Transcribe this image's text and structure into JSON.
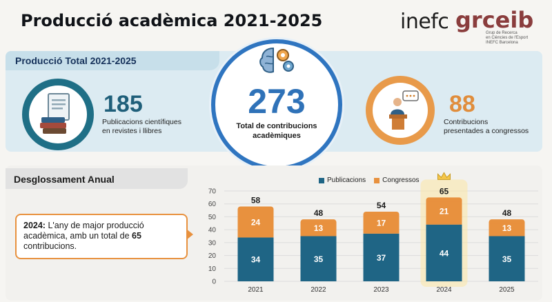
{
  "header": {
    "title": "Producció acadèmica 2021-2025",
    "logo_inefc": "inefc",
    "logo_grceib": "grceib",
    "logo_sub": [
      "Grup de Recerca",
      "en Ciències de l'Esport",
      "INEFC Barcelona"
    ]
  },
  "total_section": {
    "heading": "Producció Total 2021-2025",
    "publications": {
      "value": "185",
      "label_1": "Publicacions científiques",
      "label_2": "en revistes i llibres",
      "icon": "document-books-icon"
    },
    "total": {
      "value": "273",
      "label_1": "Total de contribucions",
      "label_2": "acadèmiques",
      "icon": "brain-gears-icon"
    },
    "congresses": {
      "value": "88",
      "label_1": "Contribucions",
      "label_2": "presentades a congressos",
      "icon": "speaker-podium-icon"
    }
  },
  "annual_section": {
    "heading": "Desglossament Anual",
    "note_year": "2024:",
    "note_text_1": " L'any de major producció acadèmica, amb un total de ",
    "note_total": "65",
    "note_text_2": " contribucions."
  },
  "colors": {
    "publicacions": "#1f6585",
    "congressos": "#e8913e",
    "highlight": "#f5c64a"
  },
  "chart_data": {
    "type": "bar",
    "stacked": true,
    "categories": [
      "2021",
      "2022",
      "2023",
      "2024",
      "2025"
    ],
    "series": [
      {
        "name": "Publicacions",
        "values": [
          34,
          35,
          37,
          44,
          35
        ]
      },
      {
        "name": "Congressos",
        "values": [
          24,
          13,
          17,
          21,
          13
        ]
      }
    ],
    "totals": [
      58,
      48,
      54,
      65,
      48
    ],
    "highlight_category": "2024",
    "ylim": [
      0,
      70
    ],
    "yticks": [
      0,
      10,
      20,
      30,
      40,
      50,
      60,
      70
    ],
    "legend_position": "top"
  }
}
